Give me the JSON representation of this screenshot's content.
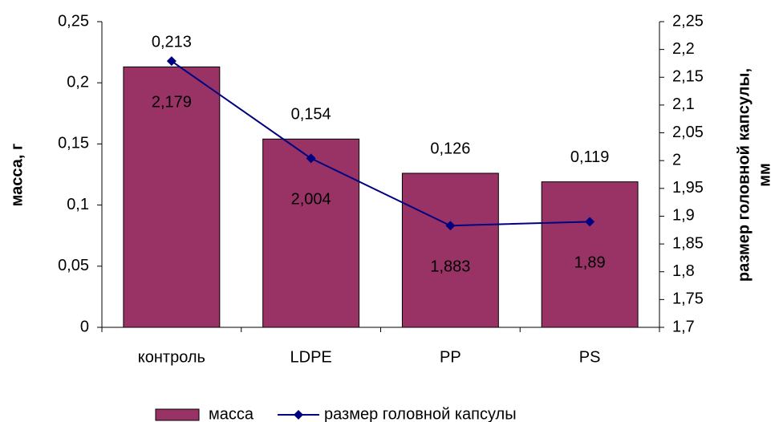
{
  "chart_data": {
    "type": "bar",
    "categories": [
      "контроль",
      "LDPE",
      "PP",
      "PS"
    ],
    "series": [
      {
        "name": "масса",
        "type": "bar",
        "color": "#993366",
        "values": [
          0.213,
          0.154,
          0.126,
          0.119
        ],
        "value_labels": [
          "0,213",
          "0,154",
          "0,126",
          "0,119"
        ]
      },
      {
        "name": "размер головной капсулы",
        "type": "line",
        "axis": "y2",
        "color": "#000080",
        "values": [
          2.179,
          2.004,
          1.883,
          1.89
        ],
        "value_labels": [
          "2,179",
          "2,004",
          "1,883",
          "1,89"
        ]
      }
    ],
    "ylabel": "масса, г",
    "y2label": [
      "размер головной капсулы,",
      "мм"
    ],
    "ylim": [
      0,
      0.25
    ],
    "yticks": [
      0,
      {
        "value": 0.05,
        "label": "0,05"
      },
      {
        "value": 0.1,
        "label": "0,1"
      },
      {
        "value": 0.15,
        "label": "0,15"
      },
      {
        "value": 0.2,
        "label": "0,2"
      },
      {
        "value": 0.25,
        "label": "0,25"
      }
    ],
    "y2lim": [
      1.7,
      2.25
    ],
    "y2ticks": [
      {
        "value": 1.7,
        "label": "1,7"
      },
      {
        "value": 1.75,
        "label": "1,75"
      },
      {
        "value": 1.8,
        "label": "1,8"
      },
      {
        "value": 1.85,
        "label": "1,85"
      },
      {
        "value": 1.9,
        "label": "1,9"
      },
      {
        "value": 1.95,
        "label": "1,95"
      },
      2,
      {
        "value": 2.05,
        "label": "2,05"
      },
      {
        "value": 2.1,
        "label": "2,1"
      },
      {
        "value": 2.15,
        "label": "2,15"
      },
      {
        "value": 2.2,
        "label": "2,2"
      },
      {
        "value": 2.25,
        "label": "2,25"
      }
    ],
    "grid": false,
    "legend": "bottom"
  }
}
